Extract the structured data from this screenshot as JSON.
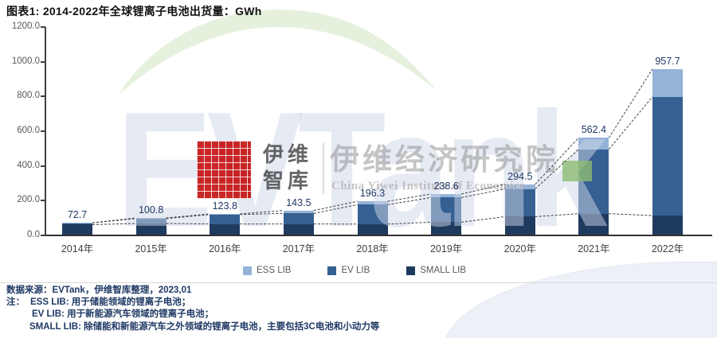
{
  "title": "图表1:  2014-2022年全球锂离子电池出货量：GWh",
  "chart_data": {
    "type": "bar",
    "stacked": true,
    "categories": [
      "2014年",
      "2015年",
      "2016年",
      "2017年",
      "2018年",
      "2019年",
      "2020年",
      "2021年",
      "2022年"
    ],
    "series": [
      {
        "name": "ESS LIB",
        "color": "#95B3D7",
        "values": [
          0.7,
          3.8,
          3.8,
          16.5,
          19.3,
          20.6,
          26.7,
          66.3,
          159.3
        ]
      },
      {
        "name": "EV LIB",
        "color": "#366092",
        "values": [
          10.0,
          28.0,
          54.0,
          61.0,
          112.0,
          142.0,
          159.8,
          371.0,
          684.2
        ]
      },
      {
        "name": "SMALL LIB",
        "color": "#1F3A5F",
        "values": [
          62.0,
          69.0,
          66.0,
          66.0,
          65.0,
          76.0,
          108.0,
          125.1,
          114.2
        ]
      }
    ],
    "stack_order_bottom_to_top": [
      "SMALL LIB",
      "EV LIB",
      "ESS LIB"
    ],
    "totals": [
      72.7,
      100.8,
      123.8,
      143.5,
      196.3,
      238.6,
      294.5,
      562.4,
      957.7
    ],
    "xlabel": "",
    "ylabel": "",
    "ylim": [
      0,
      1200
    ],
    "ytick_labels": [
      "0.0",
      "200.0",
      "400.0",
      "600.0",
      "800.0",
      "1000.0",
      "1200.0"
    ],
    "grid": false,
    "legend_position": "bottom",
    "series_lines_dashed": true
  },
  "watermark": {
    "brand": "EVTank",
    "logo_line1": "伊维",
    "logo_line2": "智库",
    "institute_cn": "伊维经济研究院",
    "institute_en": "China Yiwei Institute of Economics"
  },
  "footnotes": {
    "source": "数据来源：EVTank，伊维智库整理，2023,01",
    "note_label": "注：",
    "note1": "ESS LIB: 用于储能领域的锂离子电池；",
    "note2": "EV LIB: 用于新能源汽车领域的锂离子电池；",
    "note3": "SMALL LIB: 除储能和新能源汽车之外领域的锂离子电池，主要包括3C电池和小动力等"
  },
  "colors": {
    "value_label": "#1F3864",
    "footnote": "#1F3864",
    "axis": "#404040",
    "tick_label": "#595959",
    "connector_line": "#404040"
  }
}
